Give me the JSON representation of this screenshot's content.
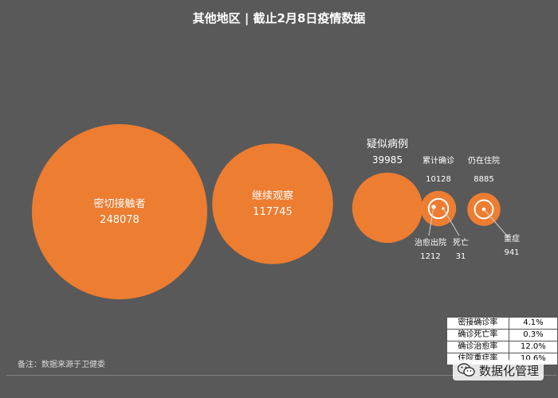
{
  "title": "其他地区 | 截止2月8日疫情数据",
  "note": "备注：数据来源于卫健委",
  "watermark": "数据化管理",
  "colors": {
    "background": "#595959",
    "bubble": "#ED7D31",
    "bubble_inner": "#ED7D31",
    "text": "#ffffff"
  },
  "rates": [
    {
      "label": "密接确诊率",
      "value": "4.1%"
    },
    {
      "label": "确诊死亡率",
      "value": "0.3%"
    },
    {
      "label": "确诊治愈率",
      "value": "12.0%"
    },
    {
      "label": "住院重症率",
      "value": "10.6%"
    }
  ],
  "chart_data": {
    "type": "bubble",
    "title": "其他地区 | 截止2月8日疫情数据",
    "series": [
      {
        "name": "密切接触者",
        "value": 248078
      },
      {
        "name": "继续观察",
        "value": 117745
      },
      {
        "name": "疑似病例",
        "value": 39985
      },
      {
        "name": "累计确诊",
        "value": 10128,
        "children": [
          {
            "name": "治愈出院",
            "value": 1212
          },
          {
            "name": "死亡",
            "value": 31
          }
        ]
      },
      {
        "name": "仍在住院",
        "value": 8885,
        "children": [
          {
            "name": "重症",
            "value": 941
          }
        ]
      }
    ]
  }
}
